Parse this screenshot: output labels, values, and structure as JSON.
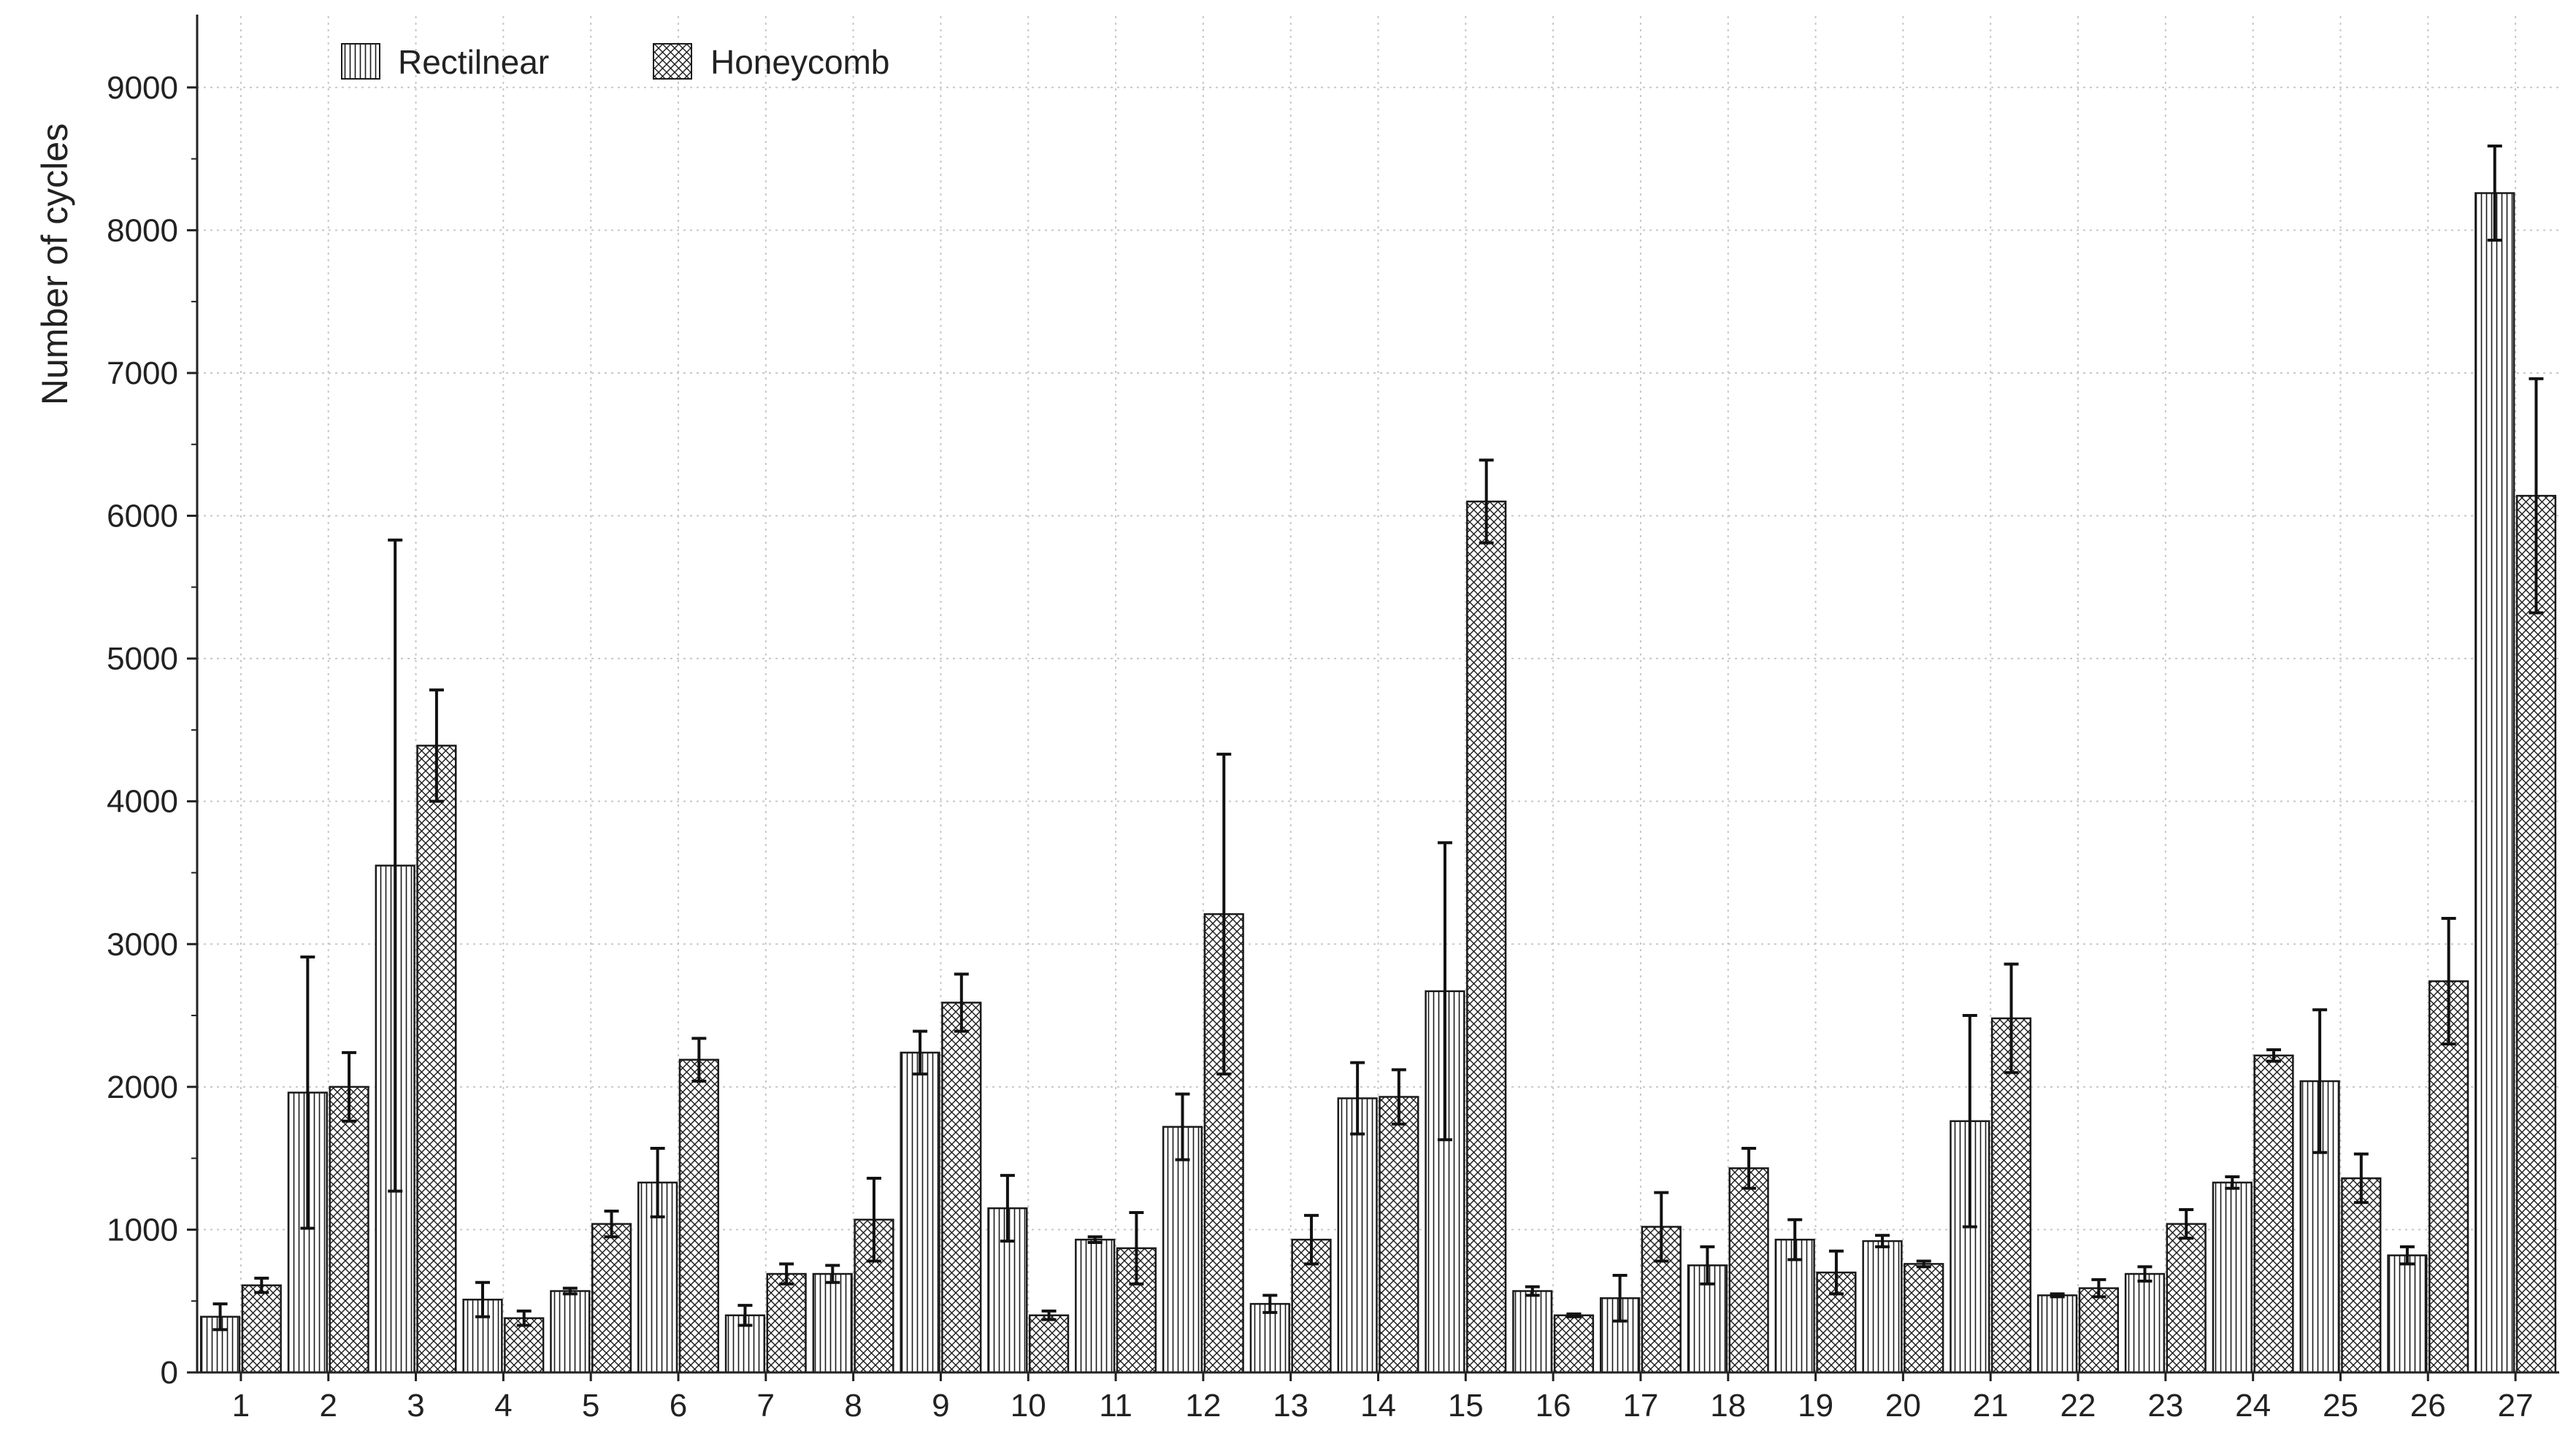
{
  "chart_data": {
    "type": "bar",
    "title": "",
    "xlabel": "",
    "ylabel": "Number of cycles",
    "ylim": [
      0,
      9500
    ],
    "yticks": [
      0,
      1000,
      2000,
      3000,
      4000,
      5000,
      6000,
      7000,
      8000,
      9000
    ],
    "grid": true,
    "legend_position": "top-left",
    "categories": [
      "1",
      "2",
      "3",
      "4",
      "5",
      "6",
      "7",
      "8",
      "9",
      "10",
      "11",
      "12",
      "13",
      "14",
      "15",
      "16",
      "17",
      "18",
      "19",
      "20",
      "21",
      "22",
      "23",
      "24",
      "25",
      "26",
      "27"
    ],
    "series": [
      {
        "name": "Rectilnear",
        "pattern": "vertical-lines",
        "values": [
          390,
          1960,
          3550,
          510,
          570,
          1330,
          400,
          690,
          2240,
          1150,
          930,
          1720,
          480,
          1920,
          2670,
          570,
          520,
          750,
          930,
          920,
          1760,
          540,
          690,
          1330,
          2040,
          820,
          8260
        ],
        "errors": [
          90,
          950,
          2280,
          120,
          20,
          240,
          70,
          60,
          150,
          230,
          20,
          230,
          60,
          250,
          1040,
          30,
          160,
          130,
          140,
          40,
          740,
          10,
          50,
          40,
          500,
          60,
          330
        ]
      },
      {
        "name": "Honeycomb",
        "pattern": "crosshatch",
        "values": [
          610,
          2000,
          4390,
          380,
          1040,
          2190,
          690,
          1070,
          2590,
          400,
          870,
          3210,
          930,
          1930,
          6100,
          400,
          1020,
          1430,
          700,
          760,
          2480,
          590,
          1040,
          2220,
          1360,
          2740,
          6140
        ],
        "errors": [
          50,
          240,
          390,
          50,
          90,
          150,
          70,
          290,
          200,
          30,
          250,
          1120,
          170,
          190,
          290,
          10,
          240,
          140,
          150,
          20,
          380,
          60,
          100,
          40,
          170,
          440,
          820
        ]
      }
    ],
    "colors": {
      "bar_fill": "#ffffff",
      "bar_line": "#1a1a1a",
      "axis": "#222222",
      "grid": "#c8c8c8"
    }
  }
}
